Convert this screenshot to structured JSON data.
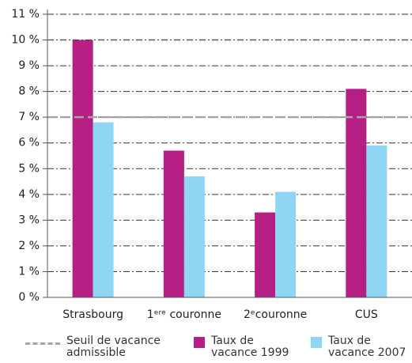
{
  "chart_data": {
    "type": "bar",
    "categories": [
      "Strasbourg",
      "1ᵉʳᵉ couronne",
      "2ᵉcouronne",
      "CUS"
    ],
    "series": [
      {
        "name": "Taux de vacance 1999",
        "color": "#b51f83",
        "values": [
          10.0,
          5.7,
          3.3,
          8.1
        ]
      },
      {
        "name": "Taux de vacance 2007",
        "color": "#8fd6f5",
        "values": [
          6.8,
          4.7,
          4.1,
          5.9
        ]
      }
    ],
    "threshold": {
      "name": "Seuil de vacance admissible",
      "value": 7,
      "color": "#a6a6a6"
    },
    "ylim": [
      0,
      11
    ],
    "yticks": [
      {
        "value": 0,
        "label": "0 %"
      },
      {
        "value": 1,
        "label": "1 %"
      },
      {
        "value": 2,
        "label": "2 %"
      },
      {
        "value": 3,
        "label": "3 %"
      },
      {
        "value": 4,
        "label": "4 %"
      },
      {
        "value": 5,
        "label": "5 %"
      },
      {
        "value": 6,
        "label": "6 %"
      },
      {
        "value": 7,
        "label": "7 %"
      },
      {
        "value": 8,
        "label": "8 %"
      },
      {
        "value": 9,
        "label": "9 %"
      },
      {
        "value": 10,
        "label": "10 %"
      },
      {
        "value": 11,
        "label": "11 %"
      }
    ],
    "grid": true
  }
}
